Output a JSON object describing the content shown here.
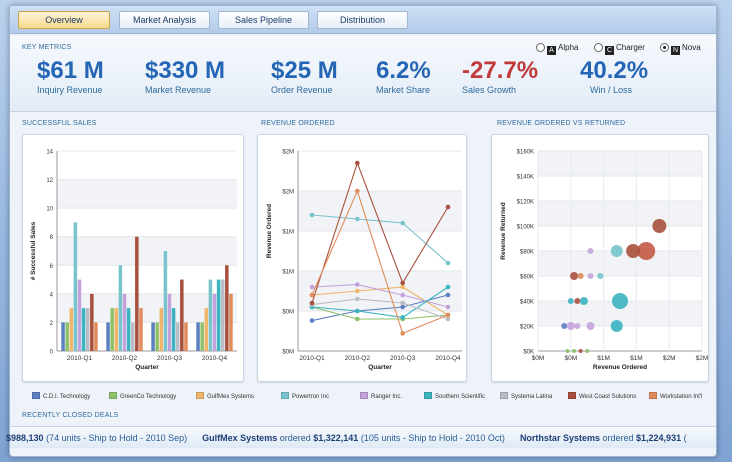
{
  "tabs": [
    {
      "label": "Overview",
      "active": true
    },
    {
      "label": "Market Analysis",
      "active": false
    },
    {
      "label": "Sales Pipeline",
      "active": false
    },
    {
      "label": "Distribution",
      "active": false
    }
  ],
  "key_metrics": {
    "title": "KEY METRICS",
    "items": [
      {
        "value": "$61 M",
        "label": "Inquiry Revenue",
        "negative": false
      },
      {
        "value": "$330 M",
        "label": "Market Revenue",
        "negative": false
      },
      {
        "value": "$25 M",
        "label": "Order Revenue",
        "negative": false
      },
      {
        "value": "6.2%",
        "label": "Market Share",
        "negative": false
      },
      {
        "value": "-27.7%",
        "label": "Sales Growth",
        "negative": true
      },
      {
        "value": "40.2%",
        "label": "Win / Loss",
        "negative": false
      }
    ]
  },
  "theme_selector": {
    "options": [
      {
        "label": "Alpha",
        "selected": false
      },
      {
        "label": "Charger",
        "selected": false
      },
      {
        "label": "Nova",
        "selected": true
      }
    ]
  },
  "legend": [
    {
      "name": "C.D.I. Technology",
      "color": "#5b7fc0"
    },
    {
      "name": "GreenCo Technology",
      "color": "#8cc26a"
    },
    {
      "name": "GulfMex Systems",
      "color": "#f0b568"
    },
    {
      "name": "Powertron Inc",
      "color": "#77c4cc"
    },
    {
      "name": "Ranger Inc.",
      "color": "#c4a3dc"
    },
    {
      "name": "Southern Scientific",
      "color": "#3bb4c1"
    },
    {
      "name": "Systema Latina",
      "color": "#b9bcc4"
    },
    {
      "name": "West Coast Solutions",
      "color": "#a8503d"
    },
    {
      "name": "Workstation Int'l",
      "color": "#e08b5a"
    }
  ],
  "recent_deals": {
    "title": "RECENTLY CLOSED DEALS",
    "items": [
      {
        "company": "",
        "text": "",
        "amount": "$988,130",
        "detail": "(74 units - Ship to Hold - 2010 Sep)"
      },
      {
        "company": "GulfMex Systems",
        "text": "ordered",
        "amount": "$1,322,141",
        "detail": "(105 units - Ship to Hold - 2010 Oct)"
      },
      {
        "company": "Northstar Systems",
        "text": "ordered",
        "amount": "$1,224,931",
        "detail": "("
      }
    ]
  },
  "chart_data": [
    {
      "type": "bar",
      "title": "SUCCESSFUL SALES",
      "xlabel": "Quarter",
      "ylabel": "# Successful Sales",
      "ylim": [
        0,
        14
      ],
      "yticks": [
        0,
        2,
        4,
        6,
        8,
        10,
        12,
        14
      ],
      "categories": [
        "2010-Q1",
        "2010-Q2",
        "2010-Q3",
        "2010-Q4"
      ],
      "series": [
        {
          "name": "C.D.I. Technology",
          "color": "#5b7fc0",
          "values": [
            2,
            2,
            2,
            2
          ]
        },
        {
          "name": "GreenCo Technology",
          "color": "#8cc26a",
          "values": [
            2,
            3,
            2,
            2
          ]
        },
        {
          "name": "GulfMex Systems",
          "color": "#f0b568",
          "values": [
            3,
            3,
            3,
            3
          ]
        },
        {
          "name": "Powertron Inc",
          "color": "#77c4cc",
          "values": [
            9,
            6,
            7,
            5
          ]
        },
        {
          "name": "Ranger Inc.",
          "color": "#c4a3dc",
          "values": [
            5,
            4,
            4,
            4
          ]
        },
        {
          "name": "Southern Scientific",
          "color": "#3bb4c1",
          "values": [
            3,
            3,
            3,
            5
          ]
        },
        {
          "name": "Systema Latina",
          "color": "#b9bcc4",
          "values": [
            3,
            2,
            2,
            5
          ]
        },
        {
          "name": "West Coast Solutions",
          "color": "#a8503d",
          "values": [
            4,
            8,
            5,
            6
          ]
        },
        {
          "name": "Workstation Int'l",
          "color": "#e08b5a",
          "values": [
            2,
            3,
            2,
            4
          ]
        }
      ]
    },
    {
      "type": "line",
      "title": "REVENUE ORDERED",
      "xlabel": "Quarter",
      "ylabel": "Revenue Ordered",
      "ylim": [
        -0.5,
        2.0
      ],
      "yticks": [
        -0.5,
        0,
        0.5,
        1.0,
        1.5,
        2.0
      ],
      "ytick_labels": [
        "$0M",
        "$0M",
        "$1M",
        "$1M",
        "$2M",
        "$2M"
      ],
      "categories": [
        "2010-Q1",
        "2010-Q2",
        "2010-Q3",
        "2010-Q4"
      ],
      "series": [
        {
          "name": "C.D.I. Technology",
          "color": "#5b7fc0",
          "values": [
            -0.12,
            0.0,
            0.05,
            0.2
          ]
        },
        {
          "name": "GreenCo Technology",
          "color": "#8cc26a",
          "values": [
            0.05,
            -0.1,
            -0.1,
            -0.05
          ]
        },
        {
          "name": "GulfMex Systems",
          "color": "#f0b568",
          "values": [
            0.2,
            0.25,
            0.3,
            -0.05
          ]
        },
        {
          "name": "Powertron Inc",
          "color": "#77c4cc",
          "values": [
            1.2,
            1.15,
            1.1,
            0.6
          ]
        },
        {
          "name": "Ranger Inc.",
          "color": "#c4a3dc",
          "values": [
            0.3,
            0.33,
            0.2,
            0.05
          ]
        },
        {
          "name": "Southern Scientific",
          "color": "#3bb4c1",
          "values": [
            0.05,
            0.0,
            -0.08,
            0.3
          ]
        },
        {
          "name": "Systema Latina",
          "color": "#b9bcc4",
          "values": [
            0.08,
            0.15,
            0.1,
            -0.1
          ]
        },
        {
          "name": "West Coast Solutions",
          "color": "#a8503d",
          "values": [
            0.1,
            1.85,
            0.35,
            1.3
          ]
        },
        {
          "name": "Workstation Int'l",
          "color": "#e08b5a",
          "values": [
            0.2,
            1.5,
            -0.28,
            -0.05
          ]
        }
      ]
    },
    {
      "type": "scatter",
      "title": "REVENUE ORDERED VS RETURNED",
      "xlabel": "Revenue Ordered",
      "ylabel": "Revenue Returned",
      "xlim": [
        -0.5,
        2.0
      ],
      "ylim": [
        0,
        160
      ],
      "xticks": [
        -0.5,
        0,
        0.5,
        1.0,
        1.5,
        2.0
      ],
      "xtick_labels": [
        "$0M",
        "$0M",
        "$1M",
        "$1M",
        "$2M",
        "$2M"
      ],
      "yticks": [
        0,
        20,
        40,
        60,
        80,
        100,
        120,
        140,
        160
      ],
      "ytick_labels": [
        "$0K",
        "$20K",
        "$40K",
        "$60K",
        "$80K",
        "$100K",
        "$120K",
        "$140K",
        "$160K"
      ],
      "points": [
        {
          "x": 1.35,
          "y": 100,
          "size": 7,
          "color": "#a8503d"
        },
        {
          "x": 1.15,
          "y": 80,
          "size": 9,
          "color": "#c25a45"
        },
        {
          "x": 0.95,
          "y": 80,
          "size": 7,
          "color": "#a8503d"
        },
        {
          "x": 0.7,
          "y": 80,
          "size": 6,
          "color": "#77c4cc"
        },
        {
          "x": 0.75,
          "y": 40,
          "size": 8,
          "color": "#3bb4c1"
        },
        {
          "x": 0.7,
          "y": 20,
          "size": 6,
          "color": "#3bb4c1"
        },
        {
          "x": 0.3,
          "y": 80,
          "size": 3,
          "color": "#c4a3dc"
        },
        {
          "x": 0.45,
          "y": 60,
          "size": 3,
          "color": "#77c4cc"
        },
        {
          "x": 0.05,
          "y": 60,
          "size": 4,
          "color": "#a8503d"
        },
        {
          "x": 0.15,
          "y": 60,
          "size": 3,
          "color": "#e08b5a"
        },
        {
          "x": 0.3,
          "y": 60,
          "size": 3,
          "color": "#c4a3dc"
        },
        {
          "x": 0.0,
          "y": 40,
          "size": 3,
          "color": "#3bb4c1"
        },
        {
          "x": 0.1,
          "y": 40,
          "size": 3,
          "color": "#a8503d"
        },
        {
          "x": 0.2,
          "y": 40,
          "size": 4,
          "color": "#3bb4c1"
        },
        {
          "x": -0.1,
          "y": 20,
          "size": 3,
          "color": "#5b7fc0"
        },
        {
          "x": 0.0,
          "y": 20,
          "size": 4,
          "color": "#c4a3dc"
        },
        {
          "x": 0.1,
          "y": 20,
          "size": 3,
          "color": "#c4a3dc"
        },
        {
          "x": 0.3,
          "y": 20,
          "size": 4,
          "color": "#c4a3dc"
        },
        {
          "x": -0.05,
          "y": 0,
          "size": 2,
          "color": "#8cc26a"
        },
        {
          "x": 0.05,
          "y": 0,
          "size": 2,
          "color": "#8cc26a"
        },
        {
          "x": 0.15,
          "y": 0,
          "size": 2,
          "color": "#a8503d"
        },
        {
          "x": 0.25,
          "y": 0,
          "size": 2,
          "color": "#8cc26a"
        }
      ]
    }
  ]
}
